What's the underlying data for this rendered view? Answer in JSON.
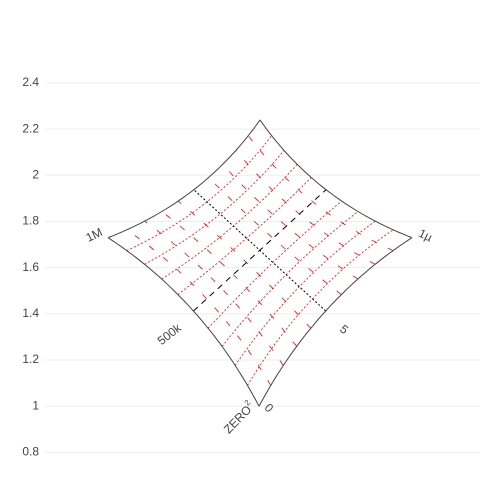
{
  "chart_data": {
    "type": "carpet",
    "y_axis": {
      "ticks": [
        0.8,
        1,
        1.2,
        1.4,
        1.6,
        1.8,
        2,
        2.2,
        2.4
      ],
      "tick_labels": [
        "0.8",
        "1",
        "1.2",
        "1.4",
        "1.6",
        "1.8",
        "2",
        "2.2",
        "2.4"
      ],
      "range": [
        0.78,
        2.56
      ],
      "grid": true
    },
    "carpet": {
      "a_axis": {
        "corner_label": "ZERO",
        "corner_label_exponent": "2",
        "mid_label": "500k",
        "end_label": "1M"
      },
      "b_axis": {
        "start_label": "0",
        "mid_label": "5",
        "end_label": "1µ"
      },
      "corners_y": {
        "bottom": 1.0,
        "left": 1.73,
        "top": 2.24,
        "right": 1.73
      },
      "a_mid_y": 1.33,
      "b_mid_y": 1.33,
      "minor_divisions_a": 10,
      "minor_divisions_b": 10,
      "minor_grid_color": "#ff0000",
      "major_grid_color": "#000000",
      "boundary_color": "#444444"
    }
  }
}
